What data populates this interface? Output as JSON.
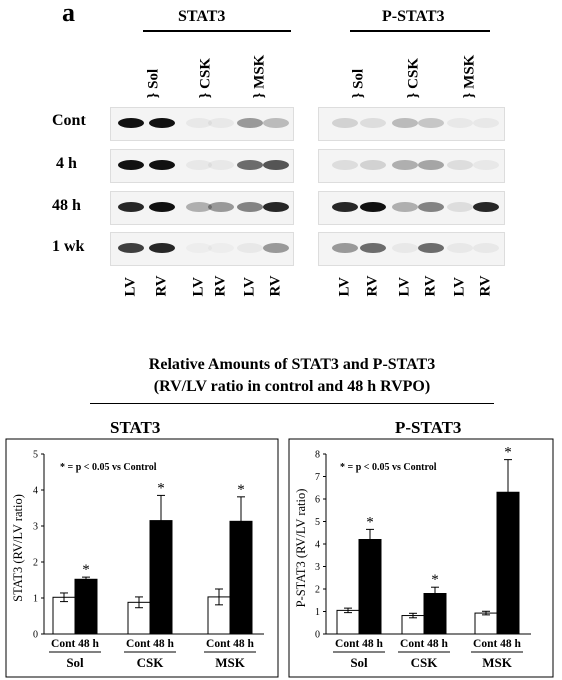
{
  "panel_label": "a",
  "blot": {
    "stat3_header": "STAT3",
    "pstat3_header": "P-STAT3",
    "tissues": [
      "Sol",
      "CSK",
      "MSK"
    ],
    "rows": [
      "Cont",
      "4 h",
      "48 h",
      "1 wk"
    ],
    "lanes": [
      "LV",
      "RV",
      "LV",
      "RV",
      "LV",
      "RV"
    ]
  },
  "figure": {
    "title_line1": "Relative Amounts of STAT3 and P-STAT3",
    "title_line2": "(RV/LV ratio in control and 48 h RVPO)"
  },
  "chart_data": [
    {
      "type": "bar",
      "title": "STAT3",
      "ylabel": "STAT3 (RV/LV ratio)",
      "ylim": [
        0,
        5
      ],
      "yticks": [
        0,
        1,
        2,
        3,
        4,
        5
      ],
      "note": "* = p < 0.05 vs Control",
      "groups": [
        "Sol",
        "CSK",
        "MSK"
      ],
      "bar_labels": [
        "Cont",
        "48 h"
      ],
      "series": [
        {
          "name": "Cont",
          "color": "#ffffff",
          "values": [
            1.02,
            0.88,
            1.03
          ],
          "errors": [
            0.12,
            0.15,
            0.22
          ]
        },
        {
          "name": "48 h",
          "color": "#000000",
          "values": [
            1.52,
            3.15,
            3.13
          ],
          "errors": [
            0.06,
            0.7,
            0.68
          ]
        }
      ],
      "significant": [
        false,
        true,
        false,
        true,
        false,
        true
      ],
      "star": "*"
    },
    {
      "type": "bar",
      "title": "P-STAT3",
      "ylabel": "P-STAT3 (RV/LV ratio)",
      "ylim": [
        0,
        8
      ],
      "yticks": [
        0,
        1,
        2,
        3,
        4,
        5,
        6,
        7,
        8
      ],
      "note": "* = p < 0.05 vs Control",
      "groups": [
        "Sol",
        "CSK",
        "MSK"
      ],
      "bar_labels": [
        "Cont",
        "48 h"
      ],
      "series": [
        {
          "name": "Cont",
          "color": "#ffffff",
          "values": [
            1.05,
            0.82,
            0.93
          ],
          "errors": [
            0.1,
            0.1,
            0.08
          ]
        },
        {
          "name": "48 h",
          "color": "#000000",
          "values": [
            4.2,
            1.8,
            6.3
          ],
          "errors": [
            0.45,
            0.28,
            1.45
          ]
        }
      ],
      "significant": [
        false,
        true,
        false,
        true,
        false,
        true
      ],
      "star": "*"
    }
  ]
}
